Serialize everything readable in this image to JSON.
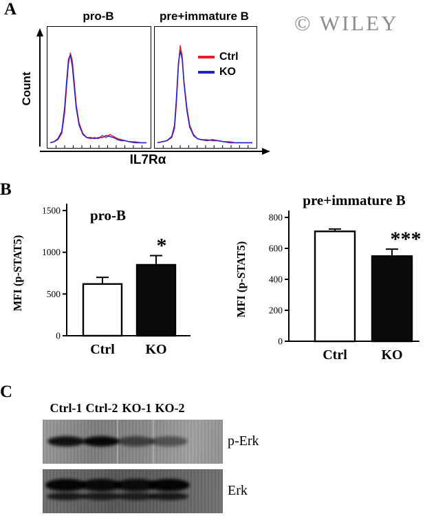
{
  "figure": {
    "panel_a_label": "A",
    "panel_b_label": "B",
    "panel_c_label": "C",
    "watermark": "© WILEY"
  },
  "colors": {
    "ctrl_line": "#ed1b24",
    "ko_line": "#2023c8",
    "axis": "#000000",
    "watermark_gray": "#8d8d8d"
  },
  "chart_data": [
    {
      "type": "line",
      "panel": "A",
      "title": "pro-B",
      "xlabel": "IL7Rα",
      "ylabel": "Count",
      "legend_position": "top-right of second plot",
      "series": [
        {
          "name": "Ctrl",
          "color": "#ed1b24",
          "points": [
            [
              0,
              1
            ],
            [
              4,
              2
            ],
            [
              8,
              4
            ],
            [
              12,
              10
            ],
            [
              15,
              30
            ],
            [
              17,
              55
            ],
            [
              19,
              78
            ],
            [
              21,
              88
            ],
            [
              23,
              80
            ],
            [
              25,
              60
            ],
            [
              27,
              38
            ],
            [
              30,
              20
            ],
            [
              34,
              10
            ],
            [
              38,
              6
            ],
            [
              42,
              5
            ],
            [
              46,
              6
            ],
            [
              50,
              5
            ],
            [
              54,
              8
            ],
            [
              58,
              6
            ],
            [
              62,
              9
            ],
            [
              66,
              7
            ],
            [
              70,
              5
            ],
            [
              74,
              4
            ],
            [
              78,
              3
            ],
            [
              82,
              2
            ],
            [
              88,
              2
            ],
            [
              94,
              1
            ],
            [
              100,
              1
            ]
          ]
        },
        {
          "name": "KO",
          "color": "#2023c8",
          "points": [
            [
              0,
              1
            ],
            [
              4,
              2
            ],
            [
              8,
              5
            ],
            [
              12,
              12
            ],
            [
              15,
              35
            ],
            [
              17,
              60
            ],
            [
              19,
              82
            ],
            [
              21,
              86
            ],
            [
              23,
              75
            ],
            [
              25,
              55
            ],
            [
              27,
              35
            ],
            [
              30,
              18
            ],
            [
              34,
              9
            ],
            [
              38,
              6
            ],
            [
              42,
              6
            ],
            [
              46,
              5
            ],
            [
              50,
              6
            ],
            [
              54,
              6
            ],
            [
              58,
              8
            ],
            [
              62,
              7
            ],
            [
              66,
              6
            ],
            [
              70,
              4
            ],
            [
              74,
              3
            ],
            [
              78,
              3
            ],
            [
              82,
              2
            ],
            [
              88,
              1
            ],
            [
              94,
              1
            ],
            [
              100,
              1
            ]
          ]
        }
      ]
    },
    {
      "type": "line",
      "panel": "A",
      "title": "pre+immature B",
      "xlabel": "IL7Rα",
      "ylabel": "Count",
      "series": [
        {
          "name": "Ctrl",
          "color": "#ed1b24",
          "points": [
            [
              0,
              1
            ],
            [
              5,
              2
            ],
            [
              10,
              3
            ],
            [
              15,
              6
            ],
            [
              18,
              15
            ],
            [
              20,
              40
            ],
            [
              22,
              75
            ],
            [
              24,
              95
            ],
            [
              26,
              85
            ],
            [
              28,
              60
            ],
            [
              31,
              35
            ],
            [
              34,
              18
            ],
            [
              38,
              9
            ],
            [
              42,
              5
            ],
            [
              46,
              4
            ],
            [
              52,
              4
            ],
            [
              58,
              3
            ],
            [
              64,
              3
            ],
            [
              70,
              2
            ],
            [
              76,
              2
            ],
            [
              82,
              1
            ],
            [
              90,
              1
            ],
            [
              100,
              1
            ]
          ]
        },
        {
          "name": "KO",
          "color": "#2023c8",
          "points": [
            [
              0,
              1
            ],
            [
              5,
              2
            ],
            [
              10,
              3
            ],
            [
              15,
              7
            ],
            [
              18,
              18
            ],
            [
              20,
              45
            ],
            [
              22,
              78
            ],
            [
              24,
              90
            ],
            [
              26,
              82
            ],
            [
              28,
              58
            ],
            [
              31,
              32
            ],
            [
              34,
              16
            ],
            [
              38,
              8
            ],
            [
              42,
              5
            ],
            [
              46,
              4
            ],
            [
              52,
              3
            ],
            [
              58,
              4
            ],
            [
              64,
              3
            ],
            [
              70,
              2
            ],
            [
              76,
              1
            ],
            [
              82,
              1
            ],
            [
              90,
              1
            ],
            [
              100,
              1
            ]
          ]
        }
      ]
    },
    {
      "type": "bar",
      "panel": "B",
      "title": "pro-B",
      "ylabel": "MFI (p-STAT5)",
      "categories": [
        "Ctrl",
        "KO"
      ],
      "values": [
        620,
        850
      ],
      "errors": [
        80,
        110
      ],
      "ylim": [
        0,
        1500
      ],
      "yticks": [
        0,
        500,
        1000,
        1500
      ],
      "bar_colors": [
        "#ffffff",
        "#0a0a0a"
      ],
      "significance": [
        "",
        "*"
      ]
    },
    {
      "type": "bar",
      "panel": "B",
      "title": "pre+immature B",
      "ylabel": "MFI (p-STAT5)",
      "categories": [
        "Ctrl",
        "KO"
      ],
      "values": [
        710,
        550
      ],
      "errors": [
        15,
        45
      ],
      "ylim": [
        0,
        800
      ],
      "yticks": [
        0,
        200,
        400,
        600,
        800
      ],
      "bar_colors": [
        "#ffffff",
        "#0a0a0a"
      ],
      "significance": [
        "",
        "***"
      ]
    }
  ],
  "western_blot": {
    "lanes": [
      "Ctrl-1",
      "Ctrl-2",
      "KO-1",
      "KO-2"
    ],
    "rows": [
      {
        "label": "p-Erk",
        "band_intensities": [
          0.88,
          0.95,
          0.55,
          0.45
        ]
      },
      {
        "label": "Erk",
        "band_intensities": [
          0.95,
          0.9,
          0.88,
          0.95
        ]
      }
    ]
  }
}
